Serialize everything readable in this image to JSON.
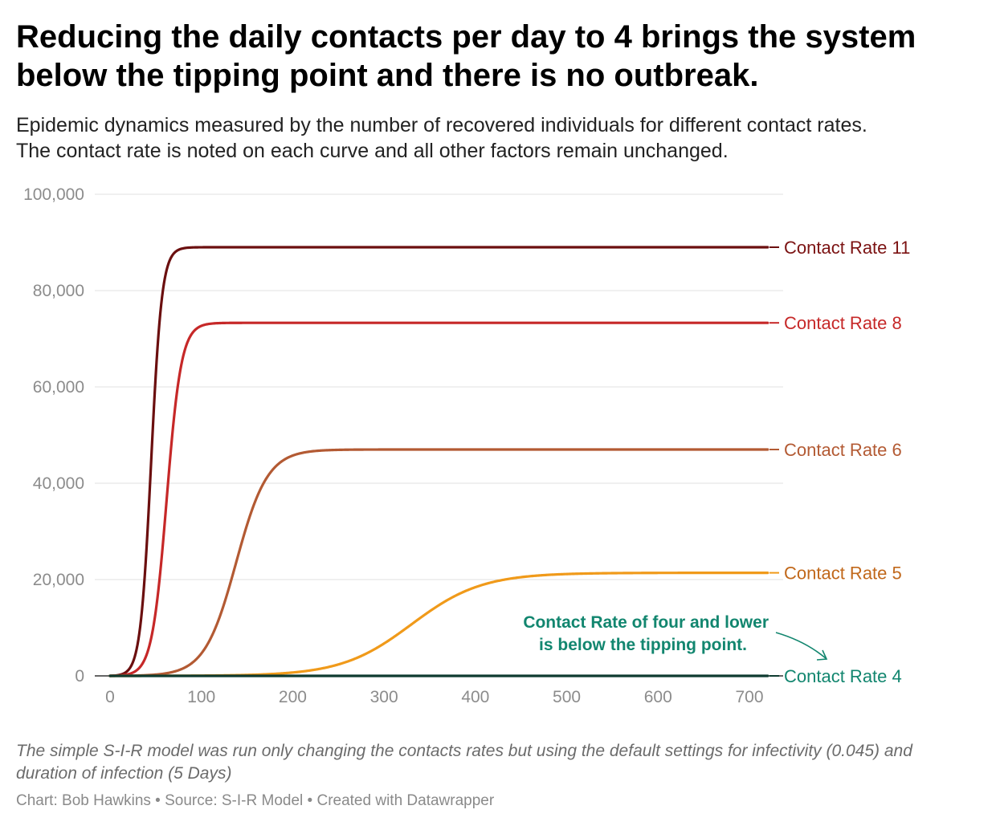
{
  "title": "Reducing the daily contacts per day to 4 brings the system below the tipping point and there is no outbreak.",
  "subtitle_line1": "Epidemic dynamics measured by the number of recovered individuals for different contact rates.",
  "subtitle_line2": "The contact rate is noted on each curve and all other factors remain unchanged.",
  "notes": "The simple S-I-R model was run only changing the contacts rates but using the default settings for infectivity (0.045) and duration of infection (5 Days)",
  "credits": {
    "chart_label": "Chart: Bob Hawkins",
    "source_label": "Source: S-I-R Model",
    "created_label": "Created with Datawrapper",
    "separator": " • "
  },
  "chart_data": {
    "type": "line",
    "xlabel": "",
    "ylabel": "",
    "xlim": [
      0,
      720
    ],
    "ylim": [
      0,
      100000
    ],
    "x_ticks": [
      0,
      100,
      200,
      300,
      400,
      500,
      600,
      700
    ],
    "x_tick_labels": [
      "0",
      "100",
      "200",
      "300",
      "400",
      "500",
      "600",
      "700"
    ],
    "y_ticks": [
      0,
      20000,
      40000,
      60000,
      80000,
      100000
    ],
    "y_tick_labels": [
      "0",
      "20,000",
      "40,000",
      "60,000",
      "80,000",
      "100,000"
    ],
    "grid": true,
    "series": [
      {
        "name": "Contact Rate 11",
        "color": "#6b0f0f",
        "label_color": "#7b1212",
        "final": 89000,
        "midpoint": 45,
        "rate": 0.17
      },
      {
        "name": "Contact Rate 8",
        "color": "#c62828",
        "label_color": "#c62828",
        "final": 73300,
        "midpoint": 62,
        "rate": 0.125
      },
      {
        "name": "Contact Rate 6",
        "color": "#b35a33",
        "label_color": "#b35a33",
        "final": 47000,
        "midpoint": 138,
        "rate": 0.058
      },
      {
        "name": "Contact Rate 5",
        "color": "#f09a1a",
        "label_color": "#c1681b",
        "final": 21400,
        "midpoint": 330,
        "rate": 0.026
      },
      {
        "name": "Contact Rate 4",
        "color": "#0e3b30",
        "label_color": "#12866f",
        "final": 0,
        "midpoint": 0,
        "rate": 0
      }
    ],
    "annotation": {
      "line1": "Contact Rate of four and lower",
      "line2": "is below the tipping point.",
      "color": "#12866f"
    }
  }
}
